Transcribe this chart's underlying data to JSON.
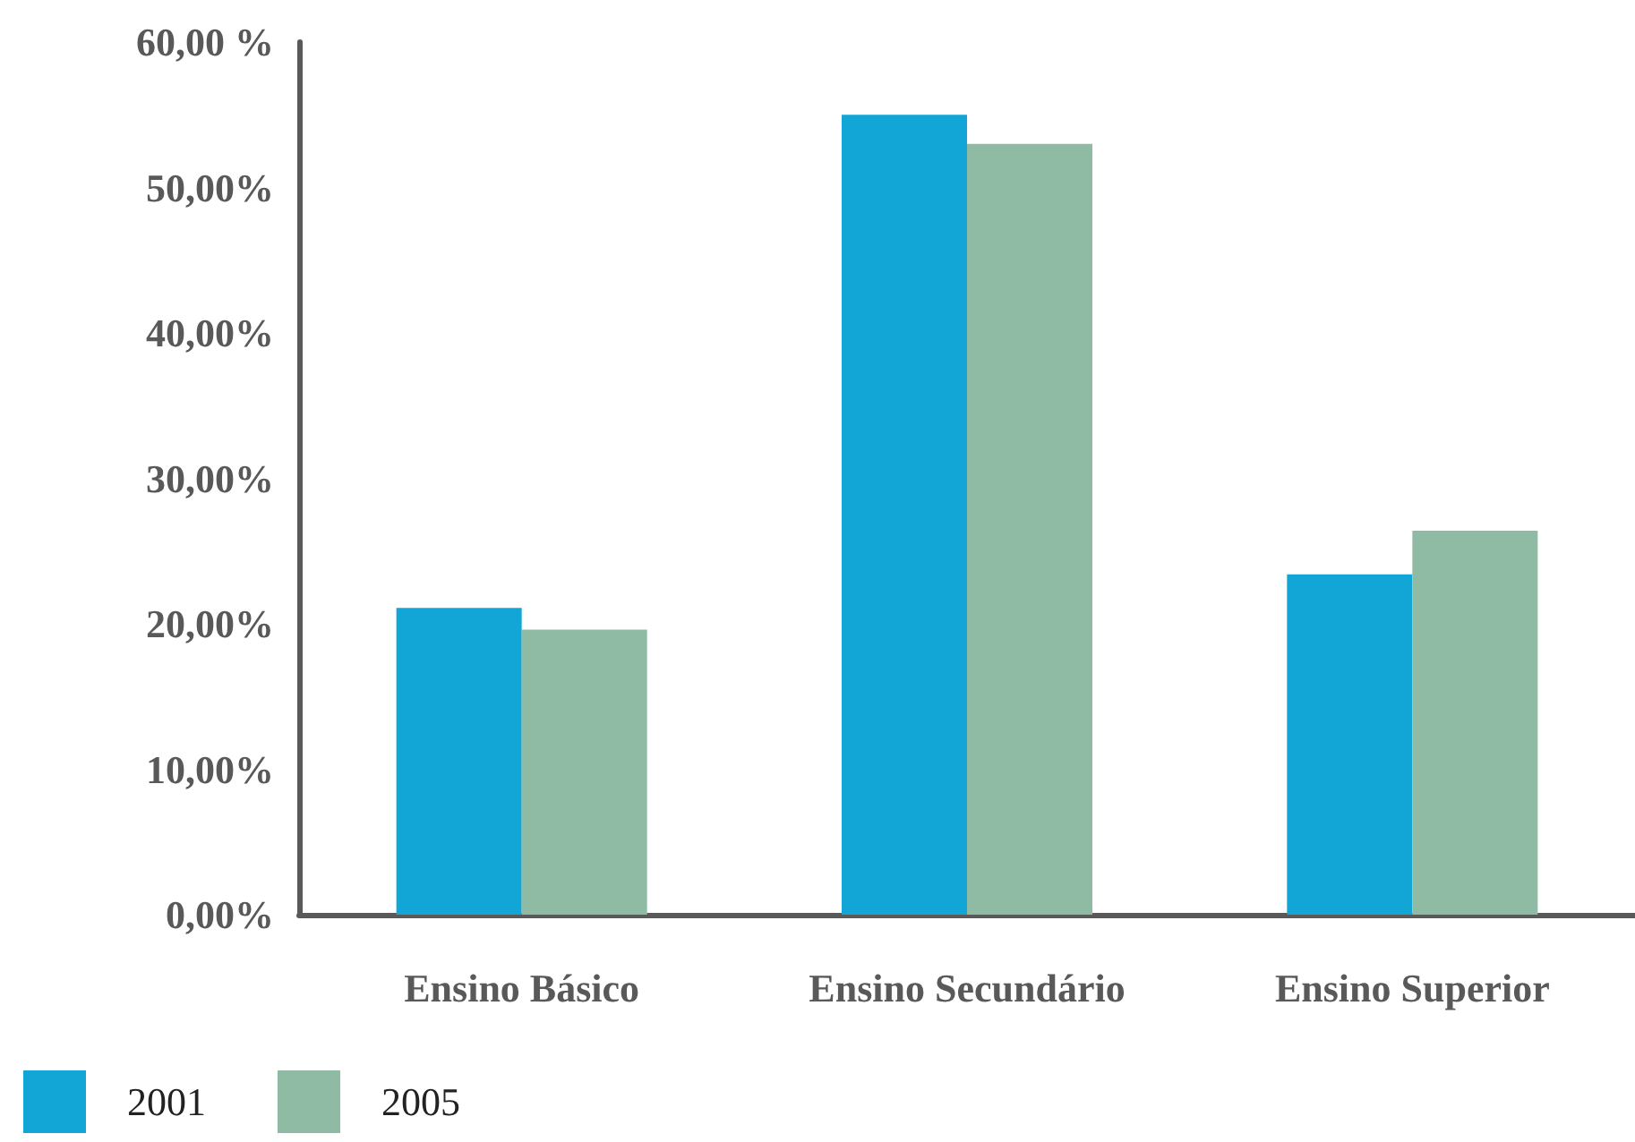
{
  "chart_data": {
    "type": "bar",
    "categories": [
      "Ensino Básico",
      "Ensino Secundário",
      "Ensino Superior"
    ],
    "series": [
      {
        "name": "2001",
        "color": "#12a6d7",
        "values": [
          21.1,
          55.0,
          23.4
        ]
      },
      {
        "name": "2005",
        "color": "#8fbba5",
        "values": [
          19.6,
          53.0,
          26.4
        ]
      }
    ],
    "ylim": [
      0,
      60
    ],
    "yticks": [
      {
        "value": 0,
        "label": "0,00%"
      },
      {
        "value": 10,
        "label": "10,00%"
      },
      {
        "value": 20,
        "label": "20,00%"
      },
      {
        "value": 30,
        "label": "30,00%"
      },
      {
        "value": 40,
        "label": "40,00%"
      },
      {
        "value": 50,
        "label": "50,00%"
      },
      {
        "value": 60,
        "label": "60,00 %"
      }
    ],
    "grid": false,
    "legend": "bottom left"
  }
}
